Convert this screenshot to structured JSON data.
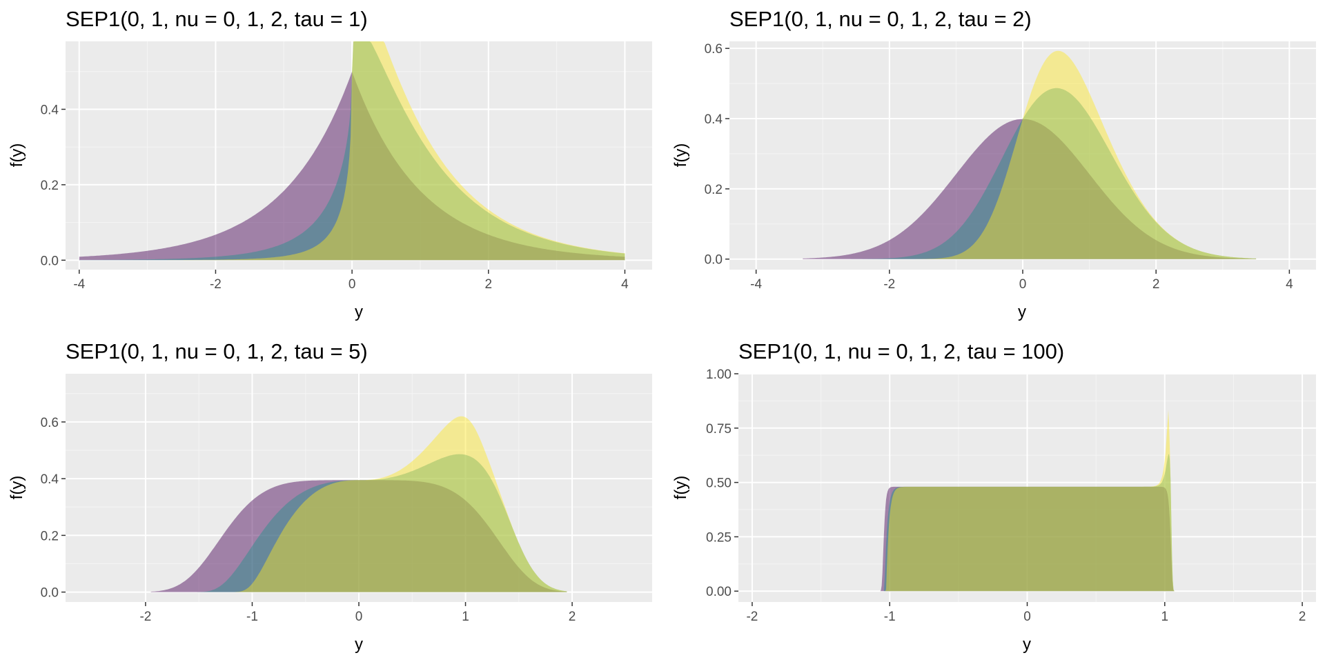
{
  "chart_data": [
    {
      "type": "area",
      "title": "SEP1(0, 1, nu = 0, 1, 2, tau = 1)",
      "xlabel": "y",
      "ylabel": "f(y)",
      "xlim": [
        -4.2,
        4.4
      ],
      "ylim": [
        -0.025,
        0.58
      ],
      "x_ticks": [
        -4,
        -2,
        0,
        2,
        4
      ],
      "x_tick_labels": [
        "-4",
        "-2",
        "0",
        "2",
        "4"
      ],
      "y_ticks": [
        0,
        0.2,
        0.4
      ],
      "y_tick_labels": [
        "0.0",
        "0.2",
        "0.4"
      ],
      "x_range": [
        -4,
        4
      ],
      "tau": 1,
      "grid": true,
      "legend": "none",
      "series": [
        {
          "nu": 0,
          "color": "#440154"
        },
        {
          "nu": 1,
          "color": "#21908C"
        },
        {
          "nu": 2,
          "color": "#FDE725"
        }
      ],
      "layer_colors": [
        "#440154",
        "#21908C",
        "#FDE725",
        "#8FD744"
      ],
      "opacity": 0.45
    },
    {
      "type": "area",
      "title": "SEP1(0, 1, nu = 0, 1, 2, tau = 2)",
      "xlabel": "y",
      "ylabel": "f(y)",
      "xlim": [
        -4.4,
        4.4
      ],
      "ylim": [
        -0.03,
        0.62
      ],
      "x_ticks": [
        -4,
        -2,
        0,
        2,
        4
      ],
      "x_tick_labels": [
        "-4",
        "-2",
        "0",
        "2",
        "4"
      ],
      "y_ticks": [
        0,
        0.2,
        0.4,
        0.6
      ],
      "y_tick_labels": [
        "0.0",
        "0.2",
        "0.4",
        "0.6"
      ],
      "x_range": [
        -3.3,
        3.5
      ],
      "tau": 2,
      "grid": true,
      "legend": "none",
      "series": [
        {
          "nu": 0,
          "color": "#440154"
        },
        {
          "nu": 1,
          "color": "#21908C"
        },
        {
          "nu": 2,
          "color": "#FDE725"
        }
      ],
      "layer_colors": [
        "#440154",
        "#21908C",
        "#FDE725",
        "#8FD744"
      ],
      "opacity": 0.45
    },
    {
      "type": "area",
      "title": "SEP1(0, 1, nu = 0, 1, 2, tau = 5)",
      "xlabel": "y",
      "ylabel": "f(y)",
      "xlim": [
        -2.75,
        2.75
      ],
      "ylim": [
        -0.035,
        0.77
      ],
      "x_ticks": [
        -2,
        -1,
        0,
        1,
        2
      ],
      "x_tick_labels": [
        "-2",
        "-1",
        "0",
        "1",
        "2"
      ],
      "y_ticks": [
        0,
        0.2,
        0.4,
        0.6
      ],
      "y_tick_labels": [
        "0.0",
        "0.2",
        "0.4",
        "0.6"
      ],
      "x_range": [
        -1.95,
        1.95
      ],
      "tau": 5,
      "grid": true,
      "legend": "none",
      "series": [
        {
          "nu": 0,
          "color": "#440154"
        },
        {
          "nu": 1,
          "color": "#21908C"
        },
        {
          "nu": 2,
          "color": "#FDE725"
        }
      ],
      "layer_colors": [
        "#440154",
        "#21908C",
        "#FDE725",
        "#8FD744"
      ],
      "opacity": 0.45
    },
    {
      "type": "area",
      "title": "SEP1(0, 1, nu = 0, 1, 2, tau = 100)",
      "xlabel": "y",
      "ylabel": "f(y)",
      "xlim": [
        -2.1,
        2.1
      ],
      "ylim": [
        -0.05,
        1.0
      ],
      "x_ticks": [
        -2,
        -1,
        0,
        1,
        2
      ],
      "x_tick_labels": [
        "-2",
        "-1",
        "0",
        "1",
        "2"
      ],
      "y_ticks": [
        0,
        0.25,
        0.5,
        0.75,
        1
      ],
      "y_tick_labels": [
        "0.00",
        "0.25",
        "0.50",
        "0.75",
        "1.00"
      ],
      "x_range": [
        -1.08,
        1.08
      ],
      "tau": 100,
      "grid": true,
      "legend": "none",
      "series": [
        {
          "nu": 0,
          "color": "#440154"
        },
        {
          "nu": 1,
          "color": "#21908C"
        },
        {
          "nu": 2,
          "color": "#FDE725"
        }
      ],
      "layer_colors": [
        "#440154",
        "#21908C",
        "#FDE725",
        "#8FD744"
      ],
      "opacity": 0.45
    }
  ]
}
